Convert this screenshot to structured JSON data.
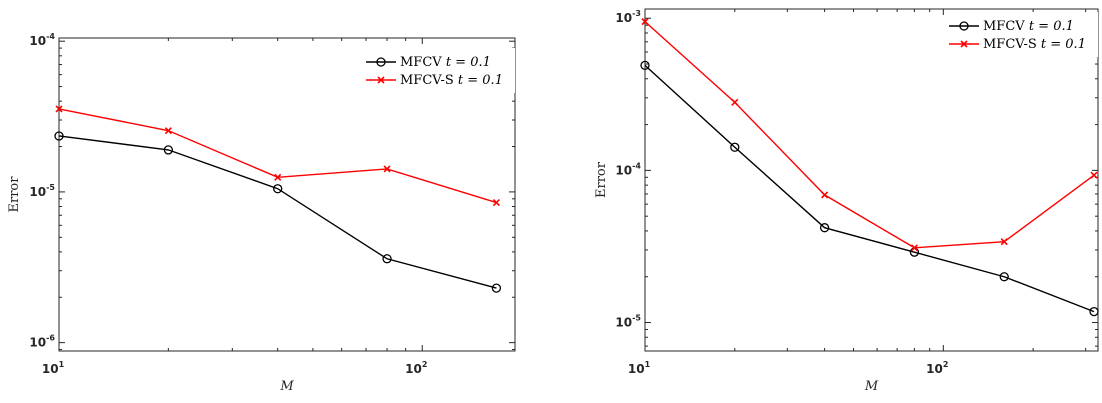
{
  "chart_data": [
    {
      "type": "line",
      "title": "",
      "xlabel": "M",
      "ylabel": "Error",
      "xscale": "log",
      "yscale": "log",
      "xlim": [
        10,
        180
      ],
      "ylim": [
        8.8e-07,
        0.000105
      ],
      "x_ticks": [
        {
          "base": "10",
          "exp": "1",
          "value": 10
        },
        {
          "base": "10",
          "exp": "2",
          "value": 100
        }
      ],
      "y_ticks": [
        {
          "base": "10",
          "exp": "-6",
          "value": 1e-06
        },
        {
          "base": "10",
          "exp": "-5",
          "value": 1e-05
        },
        {
          "base": "10",
          "exp": "-4",
          "value": 0.0001
        }
      ],
      "legend_position": "top-right",
      "grid": false,
      "series": [
        {
          "name": "MFCV",
          "legend_suffix": "t = 0.1",
          "color": "#000000",
          "marker": "circle",
          "x": [
            10,
            20,
            40,
            80,
            160
          ],
          "y": [
            2.35e-05,
            1.9e-05,
            1.05e-05,
            3.6e-06,
            2.3e-06
          ]
        },
        {
          "name": "MFCV-S",
          "legend_suffix": "t = 0.1",
          "color": "#ff0000",
          "marker": "x",
          "x": [
            10,
            20,
            40,
            80,
            160
          ],
          "y": [
            3.55e-05,
            2.55e-05,
            1.25e-05,
            1.42e-05,
            8.5e-06
          ]
        }
      ]
    },
    {
      "type": "line",
      "title": "",
      "xlabel": "M",
      "ylabel": "Error",
      "xscale": "log",
      "yscale": "log",
      "xlim": [
        10,
        330
      ],
      "ylim": [
        6.5e-06,
        0.00115
      ],
      "x_ticks": [
        {
          "base": "10",
          "exp": "1",
          "value": 10
        },
        {
          "base": "10",
          "exp": "2",
          "value": 100
        }
      ],
      "y_ticks": [
        {
          "base": "10",
          "exp": "-5",
          "value": 1e-05
        },
        {
          "base": "10",
          "exp": "-4",
          "value": 0.0001
        },
        {
          "base": "10",
          "exp": "-3",
          "value": 0.001
        }
      ],
      "legend_position": "top-right",
      "grid": false,
      "series": [
        {
          "name": "MFCV",
          "legend_suffix": "t = 0.1",
          "color": "#000000",
          "marker": "circle",
          "x": [
            10,
            20,
            40,
            80,
            160,
            320
          ],
          "y": [
            0.00049,
            0.000142,
            4.2e-05,
            2.9e-05,
            2e-05,
            1.18e-05
          ]
        },
        {
          "name": "MFCV-S",
          "legend_suffix": "t = 0.1",
          "color": "#ff0000",
          "marker": "x",
          "x": [
            10,
            20,
            40,
            80,
            160,
            320
          ],
          "y": [
            0.00095,
            0.00028,
            6.9e-05,
            3.1e-05,
            3.4e-05,
            9.3e-05
          ]
        }
      ]
    }
  ]
}
